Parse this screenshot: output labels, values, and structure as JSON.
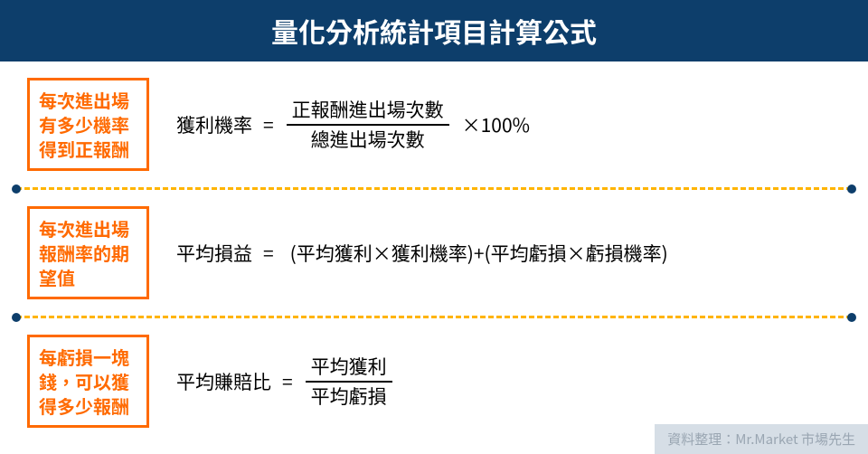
{
  "colors": {
    "header_bg": "#0d3e6b",
    "header_text": "#ffffff",
    "tag_border": "#ff6a00",
    "tag_text": "#ff6a00",
    "divider": "#ffb400",
    "dot": "#0d3e6b",
    "credit_bg": "#d6dee6",
    "credit_text": "#9aa6b2",
    "body_text": "#000000"
  },
  "typography": {
    "header_fontsize": 30,
    "tag_fontsize": 20,
    "formula_fontsize": 21,
    "tag_width": 135
  },
  "layout": {
    "divider_dash": "12px"
  },
  "header": {
    "title": "量化分析統計項目計算公式"
  },
  "rows": [
    {
      "tag_lines": [
        "每次進出場",
        "有多少機率",
        "得到正報酬"
      ],
      "lhs": "獲利機率",
      "kind": "fraction_tail",
      "numerator": "正報酬進出場次數",
      "denominator": "總進出場次數",
      "tail": "×100%"
    },
    {
      "tag_lines": [
        "每次進出場",
        "報酬率的期",
        "望值"
      ],
      "lhs": "平均損益",
      "kind": "simple",
      "rhs": "(平均獲利×獲利機率)+(平均虧損×虧損機率)"
    },
    {
      "tag_lines": [
        "每虧損一塊",
        "錢，可以獲",
        "得多少報酬"
      ],
      "lhs": "平均賺賠比",
      "kind": "fraction",
      "numerator": "平均獲利",
      "denominator": "平均虧損"
    }
  ],
  "credit": "資料整理：Mr.Market 市場先生"
}
